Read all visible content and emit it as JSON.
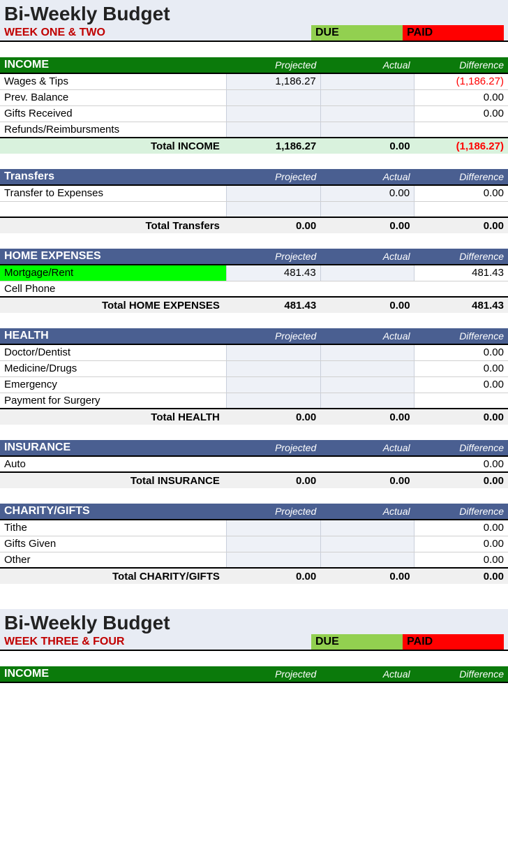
{
  "period1": {
    "title": "Bi-Weekly Budget",
    "subtitle": "WEEK ONE & TWO",
    "due_label": "DUE",
    "paid_label": "PAID"
  },
  "col": {
    "projected": "Projected",
    "actual": "Actual",
    "difference": "Difference"
  },
  "income": {
    "header": "INCOME",
    "rows": {
      "wages": {
        "label": "Wages & Tips",
        "projected": "1,186.27",
        "actual": "",
        "difference": "(1,186.27)"
      },
      "prev": {
        "label": "Prev. Balance",
        "projected": "",
        "actual": "",
        "difference": "0.00"
      },
      "gifts": {
        "label": "Gifts Received",
        "projected": "",
        "actual": "",
        "difference": "0.00"
      },
      "refunds": {
        "label": "Refunds/Reimbursments",
        "projected": "",
        "actual": "",
        "difference": ""
      }
    },
    "total": {
      "label": "Total INCOME",
      "projected": "1,186.27",
      "actual": "0.00",
      "difference": "(1,186.27)"
    }
  },
  "transfers": {
    "header": "Transfers",
    "rows": {
      "toexp": {
        "label": "Transfer to Expenses",
        "projected": "",
        "actual": "0.00",
        "difference": "0.00"
      },
      "blank": {
        "label": "",
        "projected": "",
        "actual": "",
        "difference": ""
      }
    },
    "total": {
      "label": "Total Transfers",
      "projected": "0.00",
      "actual": "0.00",
      "difference": "0.00"
    }
  },
  "home": {
    "header": "HOME EXPENSES",
    "rows": {
      "mortgage": {
        "label": "Mortgage/Rent",
        "projected": "481.43",
        "actual": "",
        "difference": "481.43"
      },
      "cell": {
        "label": "Cell Phone",
        "projected": "",
        "actual": "",
        "difference": ""
      }
    },
    "total": {
      "label": "Total HOME EXPENSES",
      "projected": "481.43",
      "actual": "0.00",
      "difference": "481.43"
    }
  },
  "health": {
    "header": "HEALTH",
    "rows": {
      "doctor": {
        "label": "Doctor/Dentist",
        "projected": "",
        "actual": "",
        "difference": "0.00"
      },
      "medicine": {
        "label": "Medicine/Drugs",
        "projected": "",
        "actual": "",
        "difference": "0.00"
      },
      "emerg": {
        "label": "Emergency",
        "projected": "",
        "actual": "",
        "difference": "0.00"
      },
      "surgery": {
        "label": "Payment for Surgery",
        "projected": "",
        "actual": "",
        "difference": ""
      }
    },
    "total": {
      "label": "Total HEALTH",
      "projected": "0.00",
      "actual": "0.00",
      "difference": "0.00"
    }
  },
  "insurance": {
    "header": "INSURANCE",
    "rows": {
      "auto": {
        "label": "Auto",
        "projected": "",
        "actual": "",
        "difference": "0.00"
      }
    },
    "total": {
      "label": "Total INSURANCE",
      "projected": "0.00",
      "actual": "0.00",
      "difference": "0.00"
    }
  },
  "charity": {
    "header": "CHARITY/GIFTS",
    "rows": {
      "tithe": {
        "label": "Tithe",
        "projected": "",
        "actual": "",
        "difference": "0.00"
      },
      "gifts": {
        "label": "Gifts Given",
        "projected": "",
        "actual": "",
        "difference": "0.00"
      },
      "other": {
        "label": "Other",
        "projected": "",
        "actual": "",
        "difference": "0.00"
      }
    },
    "total": {
      "label": "Total CHARITY/GIFTS",
      "projected": "0.00",
      "actual": "0.00",
      "difference": "0.00"
    }
  },
  "period2": {
    "title": "Bi-Weekly Budget",
    "subtitle": "WEEK THREE & FOUR",
    "due_label": "DUE",
    "paid_label": "PAID"
  },
  "income2": {
    "header": "INCOME"
  },
  "colors": {
    "title_bg": "#e8ecf4",
    "subtitle_text": "#c00000",
    "due_bg": "#92d050",
    "paid_bg": "#ff0000",
    "green_header_bg": "#0b7a0b",
    "blue_header_bg": "#4a5f91",
    "input_cell_bg": "#eef1f7",
    "highlight_bg": "#00ff00",
    "income_total_bg": "#d9f2dd",
    "total_row_bg": "#f0f0f0",
    "negative_text": "#ff0000"
  }
}
